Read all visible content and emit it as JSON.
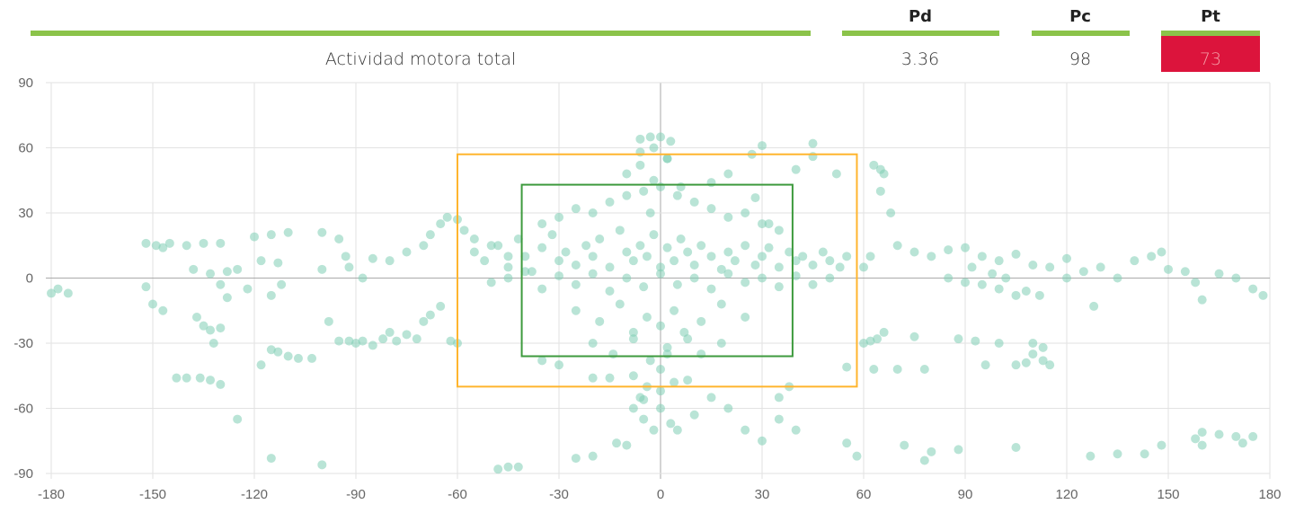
{
  "table": {
    "columns": [
      "Pd",
      "Pc",
      "Pt"
    ],
    "rows": [
      {
        "label": "Actividad motora total",
        "values": [
          "3.36",
          "98",
          "73"
        ]
      }
    ]
  },
  "chart_data": {
    "type": "scatter",
    "color": "#7fcdb5",
    "xlim": [
      -180,
      180
    ],
    "xticks": [
      -180,
      -150,
      -120,
      -90,
      -60,
      -30,
      0,
      30,
      60,
      90,
      120,
      150,
      180
    ],
    "ylim": [
      -90,
      90
    ],
    "yticks": [
      -90,
      -60,
      -30,
      0,
      30,
      60,
      90
    ],
    "grid": true,
    "regions": [
      {
        "color": "#ffb52e",
        "x": [
          -60,
          58
        ],
        "y": [
          -50,
          57
        ]
      },
      {
        "color": "#3d9a3d",
        "x": [
          -41,
          39
        ],
        "y": [
          -36,
          43
        ]
      }
    ],
    "x": [
      -180,
      -178,
      -175,
      -152,
      -150,
      -152,
      -149,
      -147,
      -145,
      -147,
      -143,
      -140,
      -137,
      -135,
      -133,
      -132,
      -130,
      -140,
      -135,
      -130,
      -138,
      -133,
      -128,
      -125,
      -130,
      -128,
      -122,
      -120,
      -118,
      -115,
      -113,
      -110,
      -112,
      -115,
      -118,
      -115,
      -113,
      -110,
      -107,
      -103,
      -125,
      -133,
      -130,
      -136,
      -115,
      -100,
      -100,
      -95,
      -93,
      -100,
      -98,
      -95,
      -92,
      -90,
      -88,
      -85,
      -82,
      -80,
      -78,
      -75,
      -72,
      -70,
      -68,
      -65,
      -62,
      -60,
      -92,
      -88,
      -85,
      -80,
      -75,
      -70,
      -68,
      -65,
      -63,
      -60,
      -58,
      -55,
      -50,
      -45,
      60,
      62,
      65,
      63,
      66,
      65,
      68,
      64,
      62,
      60,
      66,
      55,
      58,
      72,
      80,
      78,
      88,
      105,
      127,
      135,
      143,
      148,
      158,
      160,
      165,
      170,
      175,
      160,
      172,
      63,
      70,
      78,
      55,
      75,
      88,
      93,
      100,
      96,
      105,
      108,
      110,
      113,
      115,
      110,
      113,
      70,
      75,
      80,
      85,
      90,
      95,
      100,
      105,
      110,
      115,
      120,
      125,
      130,
      135,
      140,
      145,
      148,
      150,
      155,
      158,
      160,
      165,
      170,
      175,
      178,
      85,
      90,
      95,
      100,
      105,
      108,
      112,
      120,
      128,
      92,
      98,
      102,
      45,
      30,
      27,
      20,
      15,
      40,
      45,
      52,
      32,
      28,
      -3,
      -6,
      0,
      3,
      -5,
      0,
      3,
      -8,
      -10,
      -13,
      -20,
      -25,
      -45,
      -48,
      -42,
      30,
      25,
      35,
      40,
      38,
      35,
      20,
      15,
      10,
      5,
      -2,
      -6,
      8,
      -15,
      -20,
      -30,
      -35,
      -55,
      -52,
      -48,
      -45,
      -42,
      -40,
      -38,
      -35,
      -32,
      -30,
      -28,
      -25,
      -22,
      -20,
      -18,
      -15,
      -12,
      -10,
      -8,
      -6,
      -4,
      -2,
      0,
      2,
      4,
      6,
      8,
      10,
      12,
      15,
      18,
      20,
      22,
      25,
      28,
      30,
      32,
      35,
      38,
      40,
      42,
      45,
      48,
      50,
      53,
      55,
      -50,
      -45,
      -40,
      -35,
      -30,
      -25,
      -20,
      -15,
      -10,
      -5,
      0,
      5,
      10,
      15,
      20,
      25,
      30,
      35,
      40,
      45,
      50,
      -35,
      -30,
      -25,
      -20,
      -15,
      -10,
      -5,
      0,
      5,
      10,
      15,
      20,
      25,
      30,
      35,
      -25,
      -18,
      -12,
      -8,
      -4,
      0,
      4,
      8,
      12,
      18,
      25,
      -20,
      -14,
      -8,
      -3,
      2,
      7,
      12,
      18,
      -10,
      -6,
      -2,
      2,
      6,
      -8,
      -4,
      0,
      4,
      -6,
      -2,
      2,
      -5,
      0,
      -3,
      2
    ],
    "y": [
      -7,
      -5,
      -7,
      -4,
      -12,
      16,
      15,
      14,
      16,
      -15,
      -46,
      -46,
      -18,
      -22,
      -24,
      -30,
      -23,
      15,
      16,
      16,
      4,
      2,
      3,
      4,
      -3,
      -9,
      -5,
      19,
      8,
      20,
      7,
      21,
      -3,
      -8,
      -40,
      -33,
      -34,
      -36,
      -37,
      -37,
      -65,
      -47,
      -49,
      -46,
      -83,
      -86,
      21,
      18,
      10,
      4,
      -20,
      -29,
      -29,
      -30,
      -29,
      -31,
      -28,
      -25,
      -29,
      -26,
      -28,
      -20,
      -17,
      -13,
      -29,
      -30,
      5,
      0,
      9,
      8,
      12,
      15,
      20,
      25,
      28,
      27,
      22,
      18,
      15,
      10,
      5,
      10,
      50,
      52,
      48,
      40,
      30,
      -28,
      -29,
      -30,
      -25,
      -76,
      -82,
      -77,
      -80,
      -84,
      -79,
      -78,
      -82,
      -81,
      -81,
      -77,
      -74,
      -71,
      -72,
      -73,
      -73,
      -77,
      -76,
      -42,
      -42,
      -42,
      -41,
      -27,
      -28,
      -29,
      -30,
      -40,
      -40,
      -39,
      -35,
      -38,
      -40,
      -30,
      -32,
      15,
      12,
      10,
      13,
      14,
      10,
      8,
      11,
      6,
      5,
      9,
      3,
      5,
      0,
      8,
      10,
      12,
      4,
      3,
      -2,
      -10,
      2,
      0,
      -5,
      -8,
      0,
      -2,
      -3,
      -5,
      -8,
      -6,
      -8,
      0,
      -13,
      5,
      2,
      0,
      62,
      61,
      57,
      48,
      44,
      50,
      56,
      48,
      25,
      37,
      65,
      64,
      65,
      63,
      -65,
      -60,
      -67,
      -60,
      -77,
      -76,
      -82,
      -83,
      -87,
      -88,
      -87,
      -75,
      -70,
      -65,
      -70,
      -50,
      -55,
      -60,
      -55,
      -63,
      -70,
      -70,
      -55,
      -47,
      -46,
      -46,
      -40,
      -38,
      12,
      8,
      15,
      5,
      18,
      10,
      3,
      14,
      20,
      8,
      12,
      6,
      15,
      10,
      18,
      5,
      22,
      12,
      8,
      15,
      10,
      20,
      5,
      14,
      8,
      18,
      12,
      6,
      15,
      10,
      4,
      12,
      8,
      15,
      6,
      10,
      14,
      5,
      12,
      8,
      10,
      6,
      12,
      8,
      5,
      10,
      -2,
      0,
      3,
      -5,
      1,
      -3,
      2,
      -6,
      0,
      -4,
      2,
      -3,
      0,
      -5,
      2,
      -2,
      0,
      -4,
      1,
      -3,
      0,
      25,
      28,
      32,
      30,
      35,
      38,
      40,
      42,
      38,
      35,
      32,
      28,
      30,
      25,
      22,
      -15,
      -20,
      -12,
      -25,
      -18,
      -22,
      -15,
      -28,
      -20,
      -12,
      -18,
      -30,
      -35,
      -28,
      -38,
      -32,
      -25,
      -35,
      -30,
      48,
      52,
      45,
      55,
      42,
      -45,
      -50,
      -42,
      -48,
      58,
      60,
      55,
      -56,
      -52,
      30,
      -35
    ]
  }
}
